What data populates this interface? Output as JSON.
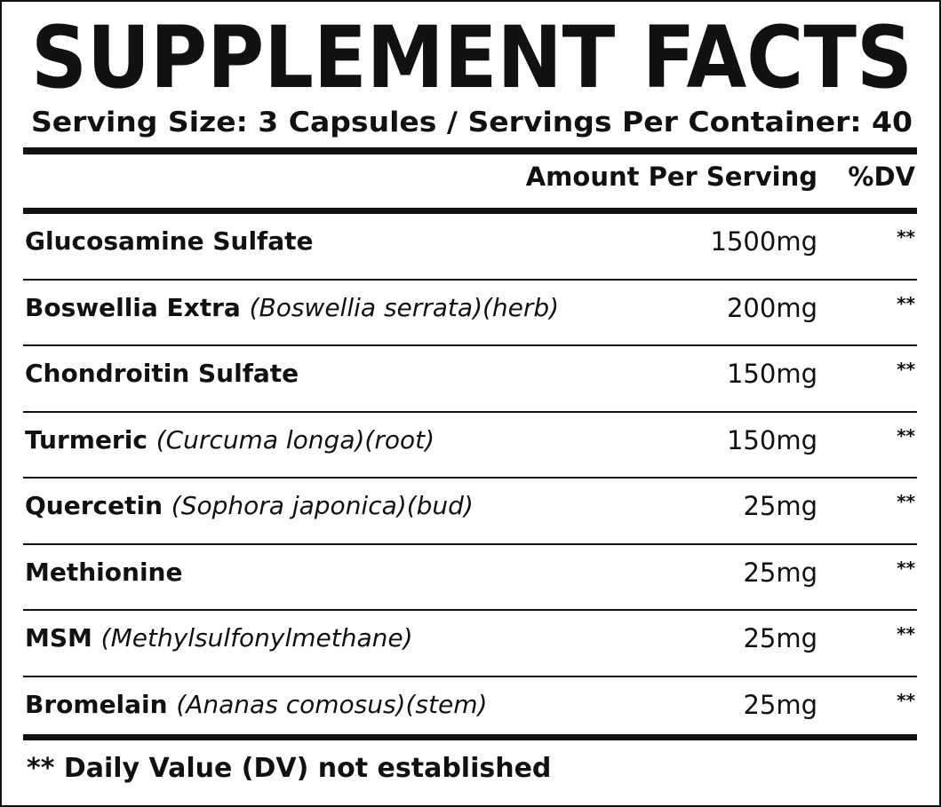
{
  "header": {
    "title": "SUPPLEMENT FACTS",
    "serving": "Serving Size: 3 Capsules / Servings Per Container: 40"
  },
  "table": {
    "columns": [
      "Amount Per Serving",
      "%DV"
    ],
    "rows": [
      {
        "name": "Glucosamine Sulfate",
        "source": null,
        "amount": "1500mg",
        "dv": "**"
      },
      {
        "name": "Boswellia Extra",
        "source": "(Boswellia serrata)(herb)",
        "amount": "200mg",
        "dv": "**"
      },
      {
        "name": "Chondroitin Sulfate",
        "source": null,
        "amount": "150mg",
        "dv": "**"
      },
      {
        "name": "Turmeric",
        "source": "(Curcuma longa)(root)",
        "amount": "150mg",
        "dv": "**"
      },
      {
        "name": "Quercetin",
        "source": "(Sophora japonica)(bud)",
        "amount": "25mg",
        "dv": "**"
      },
      {
        "name": "Methionine",
        "source": null,
        "amount": "25mg",
        "dv": "**"
      },
      {
        "name": "MSM",
        "source": "(Methylsulfonylmethane)",
        "amount": "25mg",
        "dv": "**"
      },
      {
        "name": "Bromelain",
        "source": "(Ananas comosus)(stem)",
        "amount": "25mg",
        "dv": "**"
      }
    ]
  },
  "footnote": "** Daily Value (DV) not established"
}
